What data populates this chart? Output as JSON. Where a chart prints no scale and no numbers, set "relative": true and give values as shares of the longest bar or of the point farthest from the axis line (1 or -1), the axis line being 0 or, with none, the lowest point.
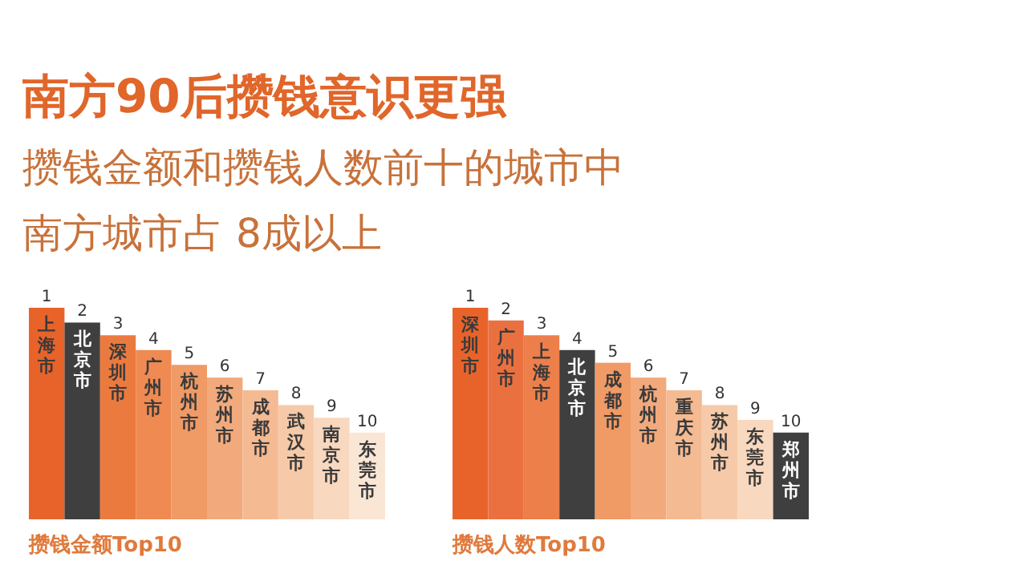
{
  "chart_data": [
    {
      "type": "bar",
      "relative": true,
      "title": "南方90后攒钱意识更强",
      "subtitle": "攒钱金额和攒钱人数前十的城市中南方城市占 8成以上",
      "xlabel": "攒钱金额Top10",
      "categories": [
        "上海市",
        "北京市",
        "深圳市",
        "广州市",
        "杭州市",
        "苏州市",
        "成都市",
        "武汉市",
        "南京市",
        "东莞市"
      ],
      "values": [
        1,
        0.93,
        0.87,
        0.8,
        0.73,
        0.67,
        0.61,
        0.54,
        0.48,
        0.41
      ],
      "colors": [
        "#e8632a",
        "#3f3f3f",
        "#eb7a3f",
        "#ee8a52",
        "#f09a66",
        "#f2aa7c",
        "#f4ba92",
        "#f6caa8",
        "#f8d8be",
        "#fae6d5"
      ],
      "annotations": [
        "1",
        "2",
        "3",
        "4",
        "5",
        "6",
        "7",
        "8",
        "9",
        "10"
      ]
    },
    {
      "type": "bar",
      "relative": true,
      "xlabel": "攒钱人数Top10",
      "categories": [
        "深圳市",
        "广州市",
        "上海市",
        "北京市",
        "成都市",
        "杭州市",
        "重庆市",
        "苏州市",
        "东莞市",
        "郑州市"
      ],
      "values": [
        1,
        0.94,
        0.87,
        0.8,
        0.74,
        0.67,
        0.61,
        0.54,
        0.47,
        0.41
      ],
      "colors": [
        "#e8632a",
        "#eb7040",
        "#ed7f4a",
        "#3f3f3f",
        "#f09a66",
        "#f2aa7c",
        "#f4ba92",
        "#f6caa8",
        "#f8d8be",
        "#3f3f3f"
      ],
      "annotations": [
        "1",
        "2",
        "3",
        "4",
        "5",
        "6",
        "7",
        "8",
        "9",
        "10"
      ]
    }
  ]
}
